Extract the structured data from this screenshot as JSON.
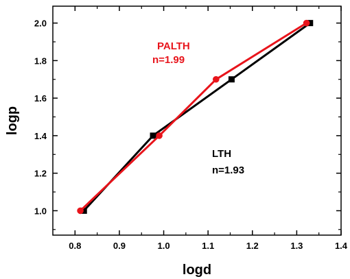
{
  "chart_data": {
    "type": "line",
    "title": "",
    "xlabel": "logd",
    "ylabel": "logp",
    "xlim": [
      0.75,
      1.4
    ],
    "ylim": [
      0.87,
      2.09
    ],
    "x_ticks": [
      0.8,
      0.9,
      1.0,
      1.1,
      1.2,
      1.3,
      1.4
    ],
    "x_tick_labels": [
      "0.8",
      "0.9",
      "1.0",
      "1.1",
      "1.2",
      "1.3",
      "1.4"
    ],
    "y_ticks": [
      1.0,
      1.2,
      1.4,
      1.6,
      1.8,
      2.0
    ],
    "y_tick_labels": [
      "1.0",
      "1.2",
      "1.4",
      "1.6",
      "1.8",
      "2.0"
    ],
    "grid": false,
    "legend": "none",
    "series": [
      {
        "color": "#000000",
        "marker": "square",
        "x": [
          0.82,
          0.976,
          1.153,
          1.33
        ],
        "y": [
          1.0,
          1.4,
          1.7,
          2.0
        ]
      },
      {
        "color": "#e8141b",
        "marker": "circle",
        "x": [
          0.812,
          0.99,
          1.118,
          1.322
        ],
        "y": [
          1.0,
          1.4,
          1.7,
          2.0
        ]
      }
    ],
    "annotations": [
      {
        "lines": [
          "PALTH",
          "n=1.99"
        ],
        "color": "#e8141b"
      },
      {
        "lines": [
          "LTH",
          "n=1.93"
        ],
        "color": "#000000"
      }
    ]
  }
}
